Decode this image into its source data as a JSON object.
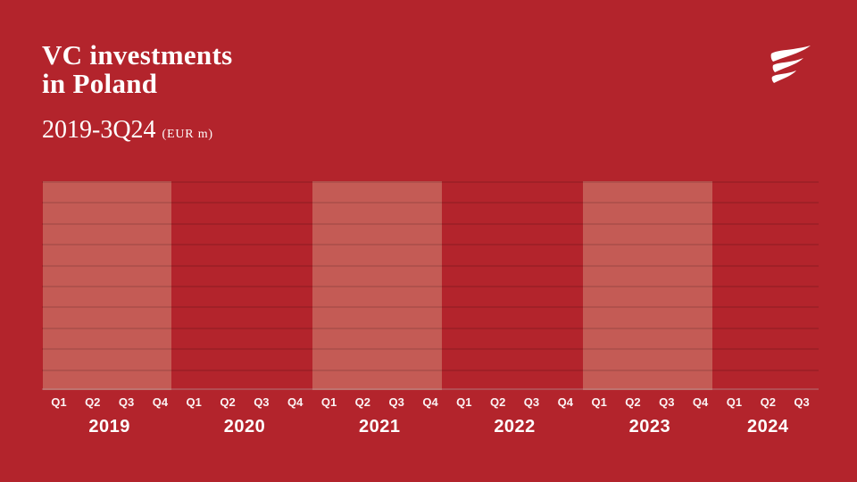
{
  "slide": {
    "title_line1": "VC investments",
    "title_line2": "in Poland",
    "subtitle_range": "2019-3Q24",
    "subtitle_unit": "(EUR m)",
    "logo_icon": "three-wave-flag-logo",
    "colors": {
      "background": "#B3242C",
      "year_band": "#C45B55",
      "gridline": "rgba(0,0,0,0.10)",
      "baseline": "rgba(255,255,255,0.20)",
      "text": "#FFFFFF"
    }
  },
  "chart_data": {
    "type": "bar",
    "title": "VC investments in Poland",
    "subtitle": "2019-3Q24 (EUR m)",
    "xlabel": "",
    "ylabel": "",
    "x_groups": [
      {
        "year": "2019",
        "quarters": [
          "Q1",
          "Q2",
          "Q3",
          "Q4"
        ],
        "highlighted": true
      },
      {
        "year": "2020",
        "quarters": [
          "Q1",
          "Q2",
          "Q3",
          "Q4"
        ],
        "highlighted": false
      },
      {
        "year": "2021",
        "quarters": [
          "Q1",
          "Q2",
          "Q3",
          "Q4"
        ],
        "highlighted": true
      },
      {
        "year": "2022",
        "quarters": [
          "Q1",
          "Q2",
          "Q3",
          "Q4"
        ],
        "highlighted": false
      },
      {
        "year": "2023",
        "quarters": [
          "Q1",
          "Q2",
          "Q3",
          "Q4"
        ],
        "highlighted": true
      },
      {
        "year": "2024",
        "quarters": [
          "Q1",
          "Q2",
          "Q3"
        ],
        "highlighted": false
      }
    ],
    "series": [],
    "values_shown": false,
    "horizontal_gridlines": 11,
    "grid": true,
    "legend": null
  }
}
